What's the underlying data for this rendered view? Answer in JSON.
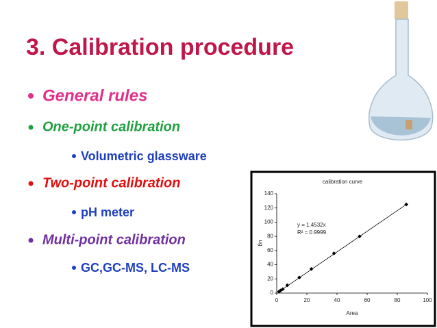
{
  "slide": {
    "title": "3. Calibration procedure",
    "bullets": [
      "General rules",
      "One-point calibration",
      "Volumetric glassware",
      "Two-point calibration",
      "pH meter",
      "Multi-point calibration",
      "GC,GC-MS, LC-MS"
    ]
  },
  "chart_data": {
    "type": "scatter",
    "title": "calibration curve",
    "x_label": "Area",
    "y_label": "ug",
    "annotations": [
      "y = 1.4532x",
      "R² = 0.9999"
    ],
    "x": [
      1.5,
      2.5,
      4,
      7,
      15,
      23,
      38,
      55,
      86
    ],
    "values": [
      2,
      3.5,
      5.5,
      11,
      22,
      34,
      56,
      80,
      125
    ],
    "color": "#000000",
    "trendline": true,
    "xlim": [
      0,
      100
    ],
    "xticks": [
      0,
      20,
      40,
      60,
      80,
      100
    ],
    "ylim": [
      0,
      140
    ],
    "yticks": [
      0,
      20,
      40,
      60,
      80,
      100,
      120,
      140
    ]
  }
}
